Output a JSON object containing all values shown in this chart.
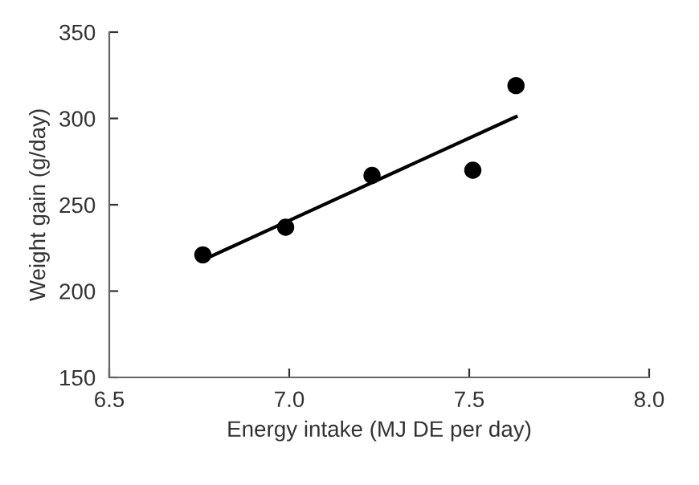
{
  "chart_data": {
    "type": "scatter",
    "xlabel": "Energy intake (MJ DE per day)",
    "ylabel": "Weight gain (g/day)",
    "xlim": [
      6.5,
      8.0
    ],
    "xticks": [
      {
        "value": 6.5,
        "label": "6.5"
      },
      {
        "value": 7.0,
        "label": "7.0"
      },
      {
        "value": 7.5,
        "label": "7.5"
      },
      {
        "value": 8.0,
        "label": "8.0"
      }
    ],
    "ylim": [
      150,
      350
    ],
    "yticks": [
      150,
      200,
      250,
      300,
      350
    ],
    "grid": false,
    "series": [
      {
        "marker": "circle",
        "color": "#000000",
        "x": [
          6.76,
          6.99,
          7.23,
          7.51,
          7.63
        ],
        "values": [
          221,
          237,
          267,
          270,
          319
        ]
      },
      {
        "type": "line",
        "marker": "none",
        "color": "#000000",
        "x": [
          6.76,
          7.63
        ],
        "values": [
          218,
          301
        ]
      }
    ]
  }
}
